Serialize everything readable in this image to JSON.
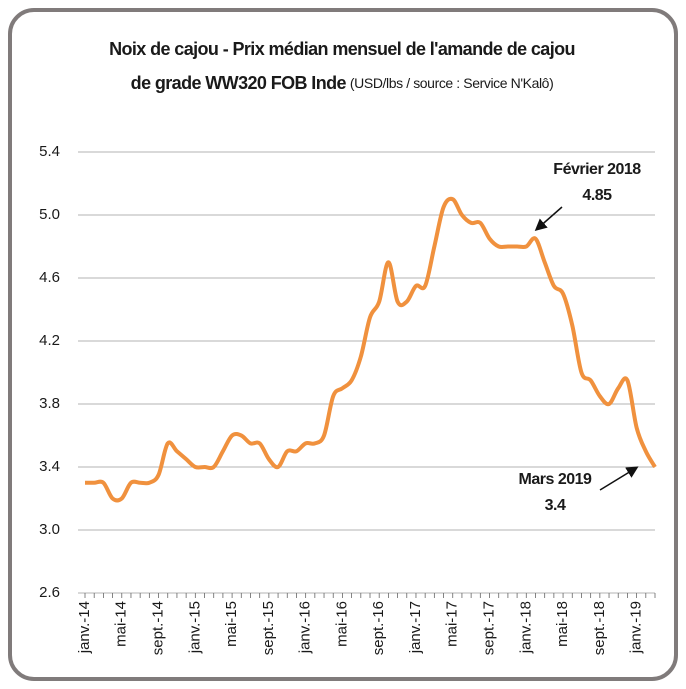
{
  "chart_data": {
    "type": "line",
    "title": [
      "Noix de cajou - Prix médian mensuel de l'amande de cajou",
      "de grade WW320 FOB Inde"
    ],
    "subtitle": "(USD/lbs / source : Service N'Kalô)",
    "categories": [
      "janv.-14",
      null,
      null,
      null,
      "mai-14",
      null,
      null,
      null,
      "sept.-14",
      null,
      null,
      null,
      "janv.-15",
      null,
      null,
      null,
      "mai-15",
      null,
      null,
      null,
      "sept.-15",
      null,
      null,
      null,
      "janv.-16",
      null,
      null,
      null,
      "mai-16",
      null,
      null,
      null,
      "sept.-16",
      null,
      null,
      null,
      "janv.-17",
      null,
      null,
      null,
      "mai-17",
      null,
      null,
      null,
      "sept.-17",
      null,
      null,
      null,
      "janv.-18",
      null,
      null,
      null,
      "mai-18",
      null,
      null,
      null,
      "sept.-18",
      null,
      null,
      null,
      "janv.-19",
      null,
      null
    ],
    "series": [
      {
        "name": "Prix médian",
        "color": "#f0913e",
        "values": [
          3.3,
          3.3,
          3.3,
          3.2,
          3.2,
          3.3,
          3.3,
          3.3,
          3.35,
          3.55,
          3.5,
          3.45,
          3.4,
          3.4,
          3.4,
          3.5,
          3.6,
          3.6,
          3.55,
          3.55,
          3.45,
          3.4,
          3.5,
          3.5,
          3.55,
          3.55,
          3.6,
          3.85,
          3.9,
          3.95,
          4.1,
          4.35,
          4.45,
          4.7,
          4.45,
          4.45,
          4.55,
          4.55,
          4.8,
          5.05,
          5.1,
          5.0,
          4.95,
          4.95,
          4.85,
          4.8,
          4.8,
          4.8,
          4.8,
          4.85,
          4.7,
          4.55,
          4.5,
          4.3,
          4.0,
          3.95,
          3.85,
          3.8,
          3.9,
          3.95,
          3.65,
          3.5,
          3.4
        ]
      }
    ],
    "annotations": [
      {
        "text": "Février 2018",
        "value": 4.85
      },
      {
        "text": "Mars 2019",
        "value": 3.4
      }
    ],
    "ylim": [
      2.6,
      5.4
    ],
    "yticks": [
      2.6,
      {
        "value": 3,
        "label": "3.0"
      },
      3.4,
      3.8,
      4.2,
      4.6,
      {
        "value": 5,
        "label": "5.0"
      },
      5.4
    ],
    "grid": true
  }
}
